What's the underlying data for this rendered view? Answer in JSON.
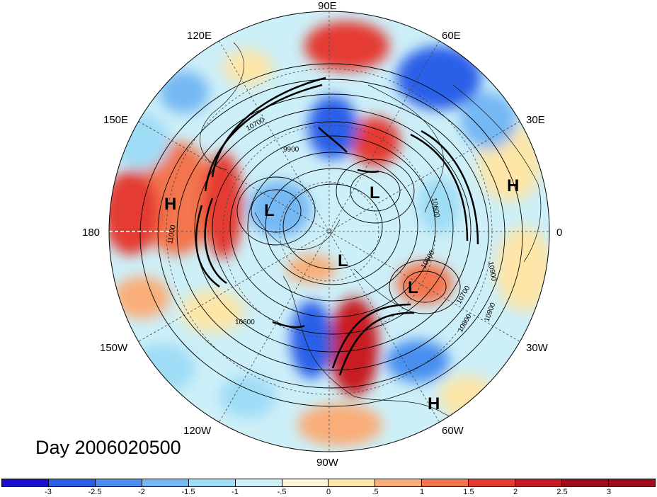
{
  "title": "Day 2006020500",
  "longitude_labels": {
    "top": "90E",
    "upper_left": "120E",
    "upper_right": "60E",
    "left_upper": "150E",
    "right_upper": "30E",
    "left": "180",
    "right": "0",
    "left_lower": "150W",
    "right_lower": "30W",
    "lower_left": "120W",
    "lower_right": "60W",
    "bottom": "90W"
  },
  "pressure_centers": [
    {
      "label": "H",
      "name": "high-left"
    },
    {
      "label": "H",
      "name": "high-right"
    },
    {
      "label": "H",
      "name": "high-bottom"
    },
    {
      "label": "L",
      "name": "low-west"
    },
    {
      "label": "L",
      "name": "low-north"
    },
    {
      "label": "L",
      "name": "low-center"
    },
    {
      "label": "L",
      "name": "low-atlantic"
    }
  ],
  "contour_labels": [
    "10700",
    "9900",
    "11000",
    "10600",
    "10600",
    "10700",
    "10800",
    "10900",
    "10900",
    "10600"
  ],
  "colorbar": {
    "ticks": [
      "-3",
      "-2.5",
      "-2",
      "-1.5",
      "-1",
      "-.5",
      "0",
      ".5",
      "1",
      "1.5",
      "2",
      "2.5",
      "3"
    ],
    "colors": [
      "#1a0fd0",
      "#2a5fe8",
      "#4a8ff0",
      "#74b8f4",
      "#9fdcf6",
      "#cdeff8",
      "#fff5d8",
      "#fde6a8",
      "#f9ad78",
      "#f2744e",
      "#e43a32",
      "#c81a24",
      "#9e0c1e",
      "#9e0c1e"
    ]
  }
}
